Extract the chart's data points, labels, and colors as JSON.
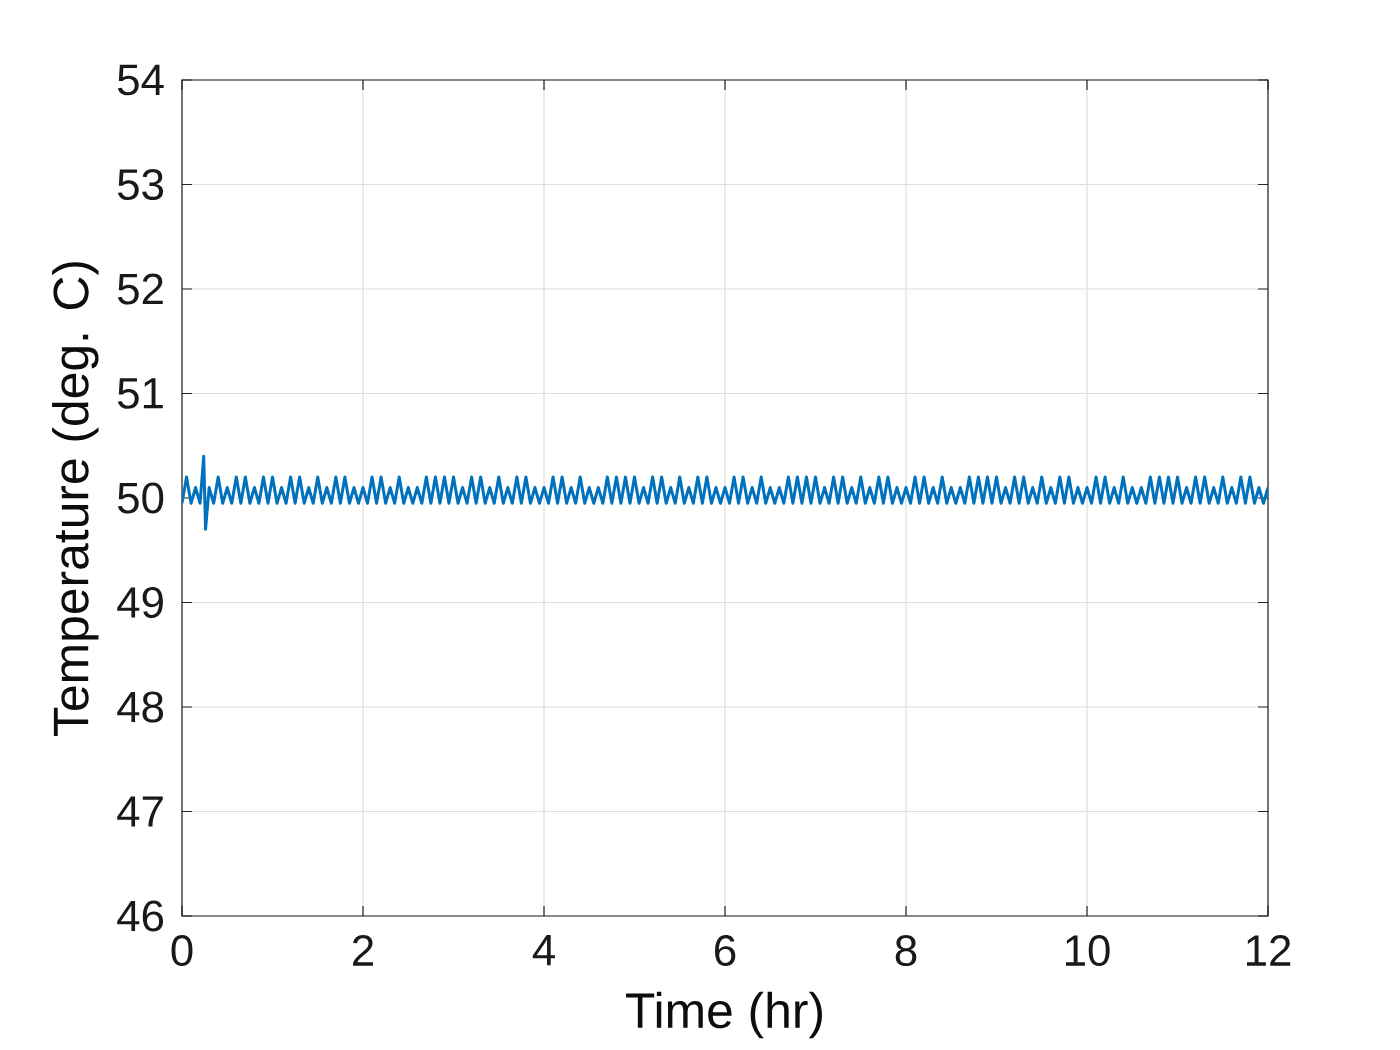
{
  "chart_data": {
    "type": "line",
    "xlabel": "Time (hr)",
    "ylabel": "Temperature (deg. C)",
    "x": [
      0,
      0.05,
      0.1,
      0.15,
      0.2,
      0.24,
      0.26,
      0.3,
      0.35,
      0.4,
      0.45,
      0.5,
      0.55,
      0.6,
      0.65,
      0.7,
      0.75,
      0.8,
      0.85,
      0.9,
      0.95,
      1,
      1.05,
      1.1,
      1.15,
      1.2,
      1.25,
      1.3,
      1.35,
      1.4,
      1.45,
      1.5,
      1.55,
      1.6,
      1.65,
      1.7,
      1.75,
      1.8,
      1.85,
      1.9,
      1.95,
      2,
      2.05,
      2.1,
      2.15,
      2.2,
      2.25,
      2.3,
      2.35,
      2.4,
      2.45,
      2.5,
      2.55,
      2.6,
      2.65,
      2.7,
      2.75,
      2.8,
      2.85,
      2.9,
      2.95,
      3,
      3.05,
      3.1,
      3.15,
      3.2,
      3.25,
      3.3,
      3.35,
      3.4,
      3.45,
      3.5,
      3.55,
      3.6,
      3.65,
      3.7,
      3.75,
      3.8,
      3.85,
      3.9,
      3.95,
      4,
      4.05,
      4.1,
      4.15,
      4.2,
      4.25,
      4.3,
      4.35,
      4.4,
      4.45,
      4.5,
      4.55,
      4.6,
      4.65,
      4.7,
      4.75,
      4.8,
      4.85,
      4.9,
      4.95,
      5,
      5.05,
      5.1,
      5.15,
      5.2,
      5.25,
      5.3,
      5.35,
      5.4,
      5.45,
      5.5,
      5.55,
      5.6,
      5.65,
      5.7,
      5.75,
      5.8,
      5.85,
      5.9,
      5.95,
      6,
      6.05,
      6.1,
      6.15,
      6.2,
      6.25,
      6.3,
      6.35,
      6.4,
      6.45,
      6.5,
      6.55,
      6.6,
      6.65,
      6.7,
      6.75,
      6.8,
      6.85,
      6.9,
      6.95,
      7,
      7.05,
      7.1,
      7.15,
      7.2,
      7.25,
      7.3,
      7.35,
      7.4,
      7.45,
      7.5,
      7.55,
      7.6,
      7.65,
      7.7,
      7.75,
      7.8,
      7.85,
      7.9,
      7.95,
      8,
      8.05,
      8.1,
      8.15,
      8.2,
      8.25,
      8.3,
      8.35,
      8.4,
      8.45,
      8.5,
      8.55,
      8.6,
      8.65,
      8.7,
      8.75,
      8.8,
      8.85,
      8.9,
      8.95,
      9,
      9.05,
      9.1,
      9.15,
      9.2,
      9.25,
      9.3,
      9.35,
      9.4,
      9.45,
      9.5,
      9.55,
      9.6,
      9.65,
      9.7,
      9.75,
      9.8,
      9.85,
      9.9,
      9.95,
      10,
      10.05,
      10.1,
      10.15,
      10.2,
      10.25,
      10.3,
      10.35,
      10.4,
      10.45,
      10.5,
      10.55,
      10.6,
      10.65,
      10.7,
      10.75,
      10.8,
      10.85,
      10.9,
      10.95,
      11,
      11.05,
      11.1,
      11.15,
      11.2,
      11.25,
      11.3,
      11.35,
      11.4,
      11.45,
      11.5,
      11.55,
      11.6,
      11.65,
      11.7,
      11.75,
      11.8,
      11.85,
      11.9,
      11.95,
      12
    ],
    "values": [
      49.95,
      50.2,
      49.95,
      50.1,
      49.95,
      50.4,
      49.7,
      50.1,
      49.95,
      50.2,
      49.95,
      50.1,
      49.95,
      50.2,
      49.95,
      50.2,
      49.95,
      50.1,
      49.95,
      50.2,
      49.95,
      50.2,
      49.95,
      50.1,
      49.95,
      50.2,
      49.95,
      50.2,
      49.95,
      50.1,
      49.95,
      50.2,
      49.95,
      50.1,
      49.95,
      50.2,
      49.95,
      50.2,
      49.95,
      50.1,
      49.95,
      50.1,
      49.95,
      50.2,
      49.95,
      50.2,
      49.95,
      50.1,
      49.95,
      50.2,
      49.95,
      50.1,
      49.95,
      50.1,
      49.95,
      50.2,
      49.95,
      50.2,
      49.95,
      50.2,
      49.95,
      50.2,
      49.95,
      50.1,
      49.95,
      50.2,
      49.95,
      50.2,
      49.95,
      50.1,
      49.95,
      50.2,
      49.95,
      50.1,
      49.95,
      50.2,
      49.95,
      50.2,
      49.95,
      50.1,
      49.95,
      50.1,
      49.95,
      50.2,
      49.95,
      50.2,
      49.95,
      50.1,
      49.95,
      50.2,
      49.95,
      50.1,
      49.95,
      50.1,
      49.95,
      50.2,
      49.95,
      50.2,
      49.95,
      50.2,
      49.95,
      50.2,
      49.95,
      50.1,
      49.95,
      50.2,
      49.95,
      50.2,
      49.95,
      50.1,
      49.95,
      50.2,
      49.95,
      50.1,
      49.95,
      50.2,
      49.95,
      50.2,
      49.95,
      50.1,
      49.95,
      50.1,
      49.95,
      50.2,
      49.95,
      50.2,
      49.95,
      50.1,
      49.95,
      50.2,
      49.95,
      50.1,
      49.95,
      50.1,
      49.95,
      50.2,
      49.95,
      50.2,
      49.95,
      50.2,
      49.95,
      50.2,
      49.95,
      50.1,
      49.95,
      50.2,
      49.95,
      50.2,
      49.95,
      50.1,
      49.95,
      50.2,
      49.95,
      50.1,
      49.95,
      50.2,
      49.95,
      50.2,
      49.95,
      50.1,
      49.95,
      50.1,
      49.95,
      50.2,
      49.95,
      50.2,
      49.95,
      50.1,
      49.95,
      50.2,
      49.95,
      50.1,
      49.95,
      50.1,
      49.95,
      50.2,
      49.95,
      50.2,
      49.95,
      50.2,
      49.95,
      50.2,
      49.95,
      50.1,
      49.95,
      50.2,
      49.95,
      50.2,
      49.95,
      50.1,
      49.95,
      50.2,
      49.95,
      50.1,
      49.95,
      50.2,
      49.95,
      50.2,
      49.95,
      50.1,
      49.95,
      50.1,
      49.95,
      50.2,
      49.95,
      50.2,
      49.95,
      50.1,
      49.95,
      50.2,
      49.95,
      50.1,
      49.95,
      50.1,
      49.95,
      50.2,
      49.95,
      50.2,
      49.95,
      50.2,
      49.95,
      50.2,
      49.95,
      50.1,
      49.95,
      50.2,
      49.95,
      50.2,
      49.95,
      50.1,
      49.95,
      50.2,
      49.95,
      50.1,
      49.95,
      50.2,
      49.95,
      50.2,
      49.95,
      50.1,
      49.95,
      50.1
    ],
    "color": "#0072bd",
    "line_style": "solid",
    "xlim": [
      0,
      12
    ],
    "ylim": [
      46,
      54
    ],
    "xticks": [
      0,
      2,
      4,
      6,
      8,
      10,
      12
    ],
    "yticks": [
      46,
      47,
      48,
      49,
      50,
      51,
      52,
      53,
      54
    ],
    "grid": true
  }
}
